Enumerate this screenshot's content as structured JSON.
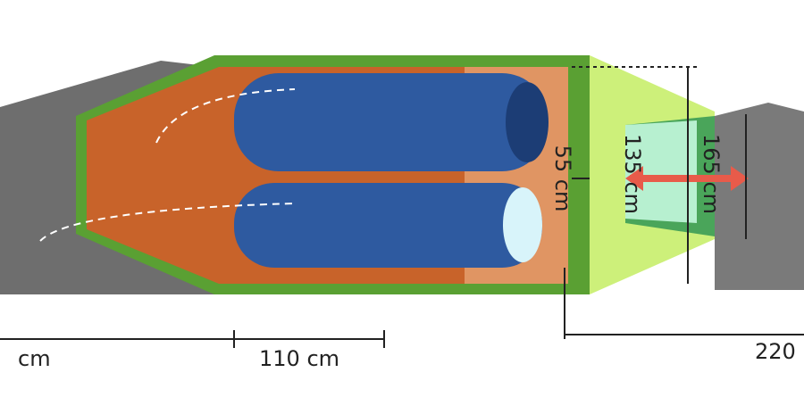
{
  "dimensions": {
    "left_width": "cm",
    "bag_width": "110 cm",
    "total_length": "220",
    "inner_height": "55 cm",
    "inner_width": "135 cm",
    "vestibule_width": "165 cm"
  }
}
